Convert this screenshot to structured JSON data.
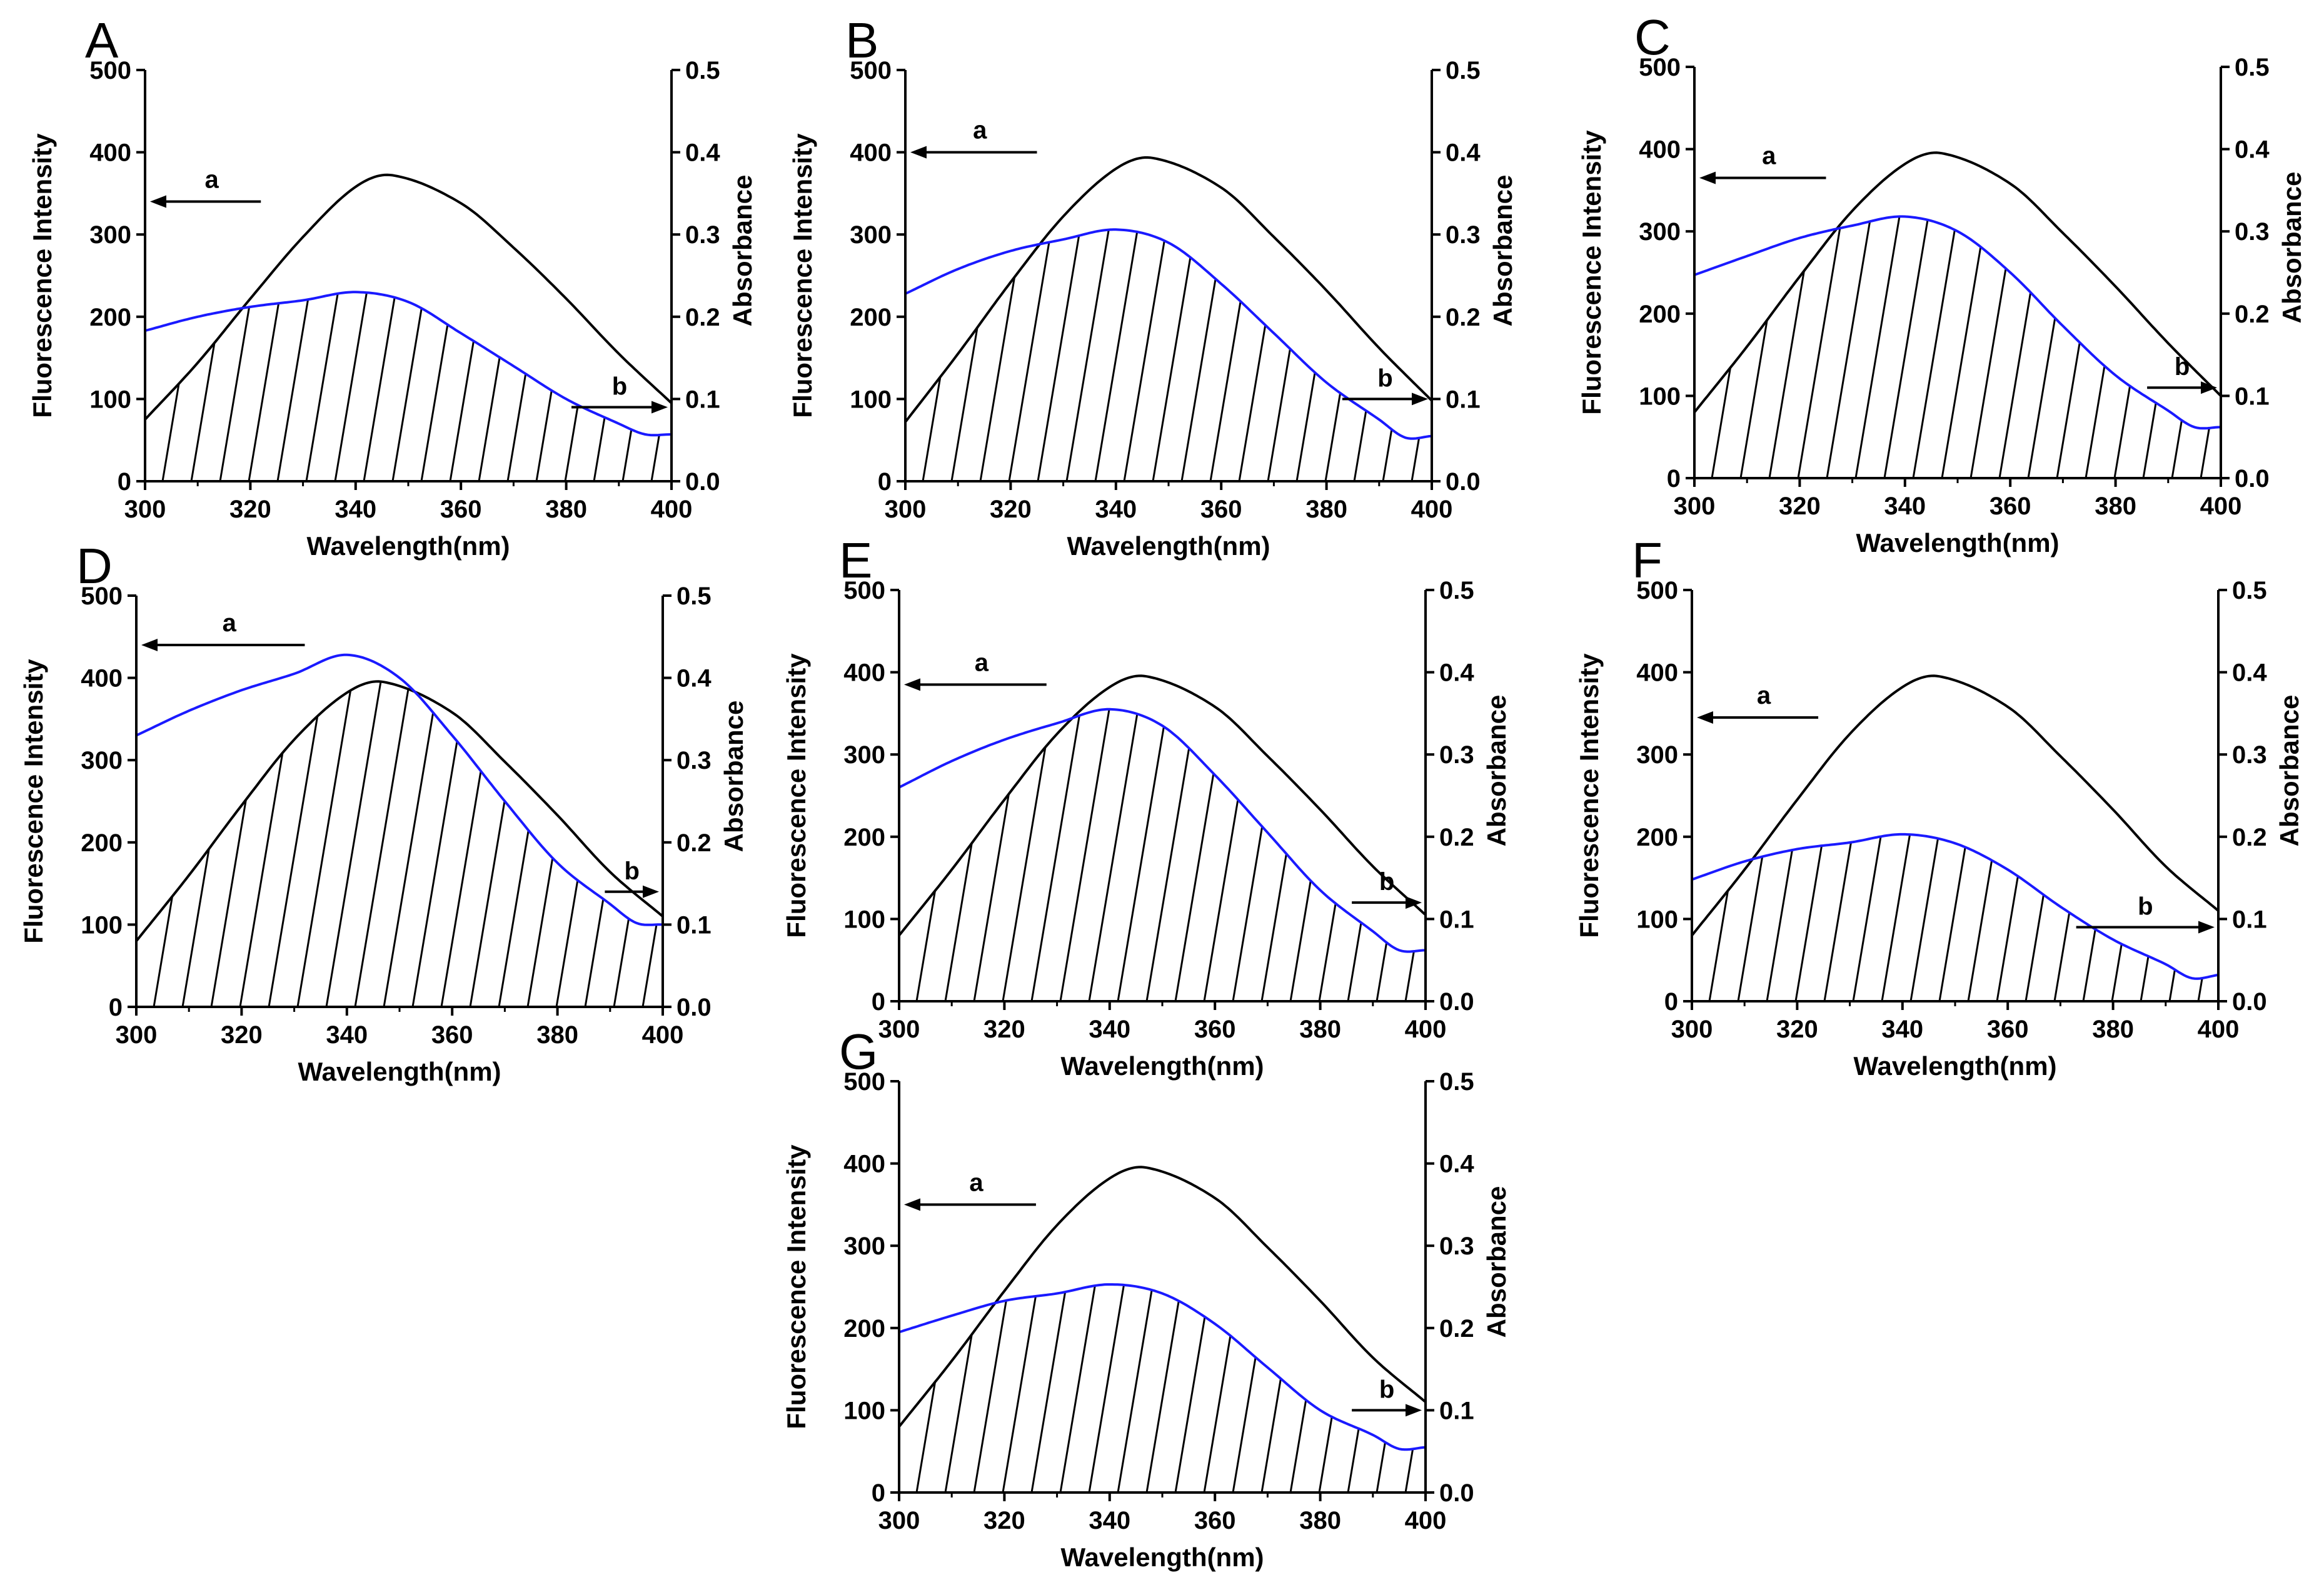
{
  "figure": {
    "colors": {
      "fluorescence": "#1a1aff",
      "absorbance": "#000000",
      "axis": "#000000",
      "hatch": "#000000"
    }
  },
  "chart_data": [
    {
      "panel": "A",
      "type": "line",
      "xlabel": "Wavelength(nm)",
      "ylabel_left": "Fluorescence Intensity",
      "ylabel_right": "Absorbance",
      "xlim": [
        300,
        400
      ],
      "ylim_left": [
        0,
        500
      ],
      "ylim_right": [
        0.0,
        0.5
      ],
      "x_ticks": [
        300,
        320,
        340,
        360,
        380,
        400
      ],
      "y_left_ticks": [
        0,
        100,
        200,
        300,
        400,
        500
      ],
      "y_right_ticks": [
        0.0,
        0.1,
        0.2,
        0.3,
        0.4,
        0.5
      ],
      "series": [
        {
          "name": "a",
          "axis": "left",
          "note": "fluorescence emission",
          "x": [
            300,
            310,
            320,
            330,
            340,
            350,
            360,
            370,
            380,
            390,
            395,
            400
          ],
          "values": [
            183,
            200,
            212,
            220,
            230,
            218,
            180,
            140,
            100,
            70,
            57,
            57
          ]
        },
        {
          "name": "b",
          "axis": "right",
          "note": "absorbance",
          "x": [
            300,
            310,
            320,
            330,
            340,
            347,
            360,
            370,
            380,
            390,
            400
          ],
          "values": [
            0.075,
            0.144,
            0.222,
            0.297,
            0.358,
            0.372,
            0.338,
            0.284,
            0.222,
            0.155,
            0.095
          ]
        }
      ]
    },
    {
      "panel": "B",
      "type": "line",
      "xlabel": "Wavelength(nm)",
      "ylabel_left": "Fluorescence Intensity",
      "ylabel_right": "Absorbance",
      "xlim": [
        300,
        400
      ],
      "ylim_left": [
        0,
        500
      ],
      "ylim_right": [
        0.0,
        0.5
      ],
      "x_ticks": [
        300,
        320,
        340,
        360,
        380,
        400
      ],
      "y_left_ticks": [
        0,
        100,
        200,
        300,
        400,
        500
      ],
      "y_right_ticks": [
        0.0,
        0.1,
        0.2,
        0.3,
        0.4,
        0.5
      ],
      "series": [
        {
          "name": "a",
          "axis": "left",
          "note": "fluorescence emission",
          "x": [
            300,
            310,
            320,
            330,
            340,
            350,
            360,
            370,
            380,
            390,
            395,
            400
          ],
          "values": [
            228,
            258,
            280,
            294,
            306,
            290,
            240,
            180,
            120,
            75,
            53,
            55
          ]
        },
        {
          "name": "b",
          "axis": "right",
          "note": "absorbance",
          "x": [
            300,
            310,
            320,
            330,
            340,
            347,
            360,
            370,
            380,
            390,
            400
          ],
          "values": [
            0.072,
            0.155,
            0.242,
            0.322,
            0.38,
            0.393,
            0.357,
            0.297,
            0.232,
            0.162,
            0.098
          ]
        }
      ]
    },
    {
      "panel": "C",
      "type": "line",
      "xlabel": "Wavelength(nm)",
      "ylabel_left": "Fluorescence Intensity",
      "ylabel_right": "Absorbance",
      "xlim": [
        300,
        400
      ],
      "ylim_left": [
        0,
        500
      ],
      "ylim_right": [
        0.0,
        0.5
      ],
      "x_ticks": [
        300,
        320,
        340,
        360,
        380,
        400
      ],
      "y_left_ticks": [
        0,
        100,
        200,
        300,
        400,
        500
      ],
      "y_right_ticks": [
        0.0,
        0.1,
        0.2,
        0.3,
        0.4,
        0.5
      ],
      "series": [
        {
          "name": "a",
          "axis": "left",
          "note": "fluorescence emission",
          "x": [
            300,
            310,
            320,
            330,
            340,
            350,
            360,
            370,
            380,
            390,
            395,
            400
          ],
          "values": [
            247,
            270,
            292,
            307,
            318,
            300,
            250,
            185,
            125,
            82,
            62,
            62
          ]
        },
        {
          "name": "b",
          "axis": "right",
          "note": "absorbance",
          "x": [
            300,
            310,
            320,
            330,
            340,
            347,
            360,
            370,
            380,
            390,
            400
          ],
          "values": [
            0.08,
            0.16,
            0.245,
            0.325,
            0.382,
            0.395,
            0.358,
            0.298,
            0.233,
            0.164,
            0.1
          ]
        }
      ]
    },
    {
      "panel": "D",
      "type": "line",
      "xlabel": "Wavelength(nm)",
      "ylabel_left": "Fluorescence Intensity",
      "ylabel_right": "Absorbance",
      "xlim": [
        300,
        400
      ],
      "ylim_left": [
        0,
        500
      ],
      "ylim_right": [
        0.0,
        0.5
      ],
      "x_ticks": [
        300,
        320,
        340,
        360,
        380,
        400
      ],
      "y_left_ticks": [
        0,
        100,
        200,
        300,
        400,
        500
      ],
      "y_right_ticks": [
        0.0,
        0.1,
        0.2,
        0.3,
        0.4,
        0.5
      ],
      "series": [
        {
          "name": "a",
          "axis": "left",
          "note": "fluorescence emission",
          "x": [
            300,
            310,
            320,
            330,
            340,
            350,
            360,
            370,
            380,
            390,
            395,
            400
          ],
          "values": [
            330,
            360,
            385,
            405,
            428,
            400,
            330,
            250,
            175,
            125,
            102,
            100
          ]
        },
        {
          "name": "b",
          "axis": "right",
          "note": "absorbance",
          "x": [
            300,
            310,
            320,
            330,
            340,
            347,
            360,
            370,
            380,
            390,
            400
          ],
          "values": [
            0.08,
            0.16,
            0.245,
            0.325,
            0.382,
            0.395,
            0.358,
            0.298,
            0.233,
            0.164,
            0.11
          ]
        }
      ]
    },
    {
      "panel": "E",
      "type": "line",
      "xlabel": "Wavelength(nm)",
      "ylabel_left": "Fluorescence Intensity",
      "ylabel_right": "Absorbance",
      "xlim": [
        300,
        400
      ],
      "ylim_left": [
        0,
        500
      ],
      "ylim_right": [
        0.0,
        0.5
      ],
      "x_ticks": [
        300,
        320,
        340,
        360,
        380,
        400
      ],
      "y_left_ticks": [
        0,
        100,
        200,
        300,
        400,
        500
      ],
      "y_right_ticks": [
        0.0,
        0.1,
        0.2,
        0.3,
        0.4,
        0.5
      ],
      "series": [
        {
          "name": "a",
          "axis": "left",
          "note": "fluorescence emission",
          "x": [
            300,
            310,
            320,
            330,
            340,
            350,
            360,
            370,
            380,
            390,
            395,
            400
          ],
          "values": [
            260,
            292,
            318,
            338,
            355,
            335,
            275,
            205,
            135,
            85,
            62,
            62
          ]
        },
        {
          "name": "b",
          "axis": "right",
          "note": "absorbance",
          "x": [
            300,
            310,
            320,
            330,
            340,
            347,
            360,
            370,
            380,
            390,
            400
          ],
          "values": [
            0.08,
            0.16,
            0.245,
            0.325,
            0.382,
            0.395,
            0.358,
            0.298,
            0.233,
            0.164,
            0.105
          ]
        }
      ]
    },
    {
      "panel": "F",
      "type": "line",
      "xlabel": "Wavelength(nm)",
      "ylabel_left": "Fluorescence Intensity",
      "ylabel_right": "Absorbance",
      "xlim": [
        300,
        400
      ],
      "ylim_left": [
        0,
        500
      ],
      "ylim_right": [
        0.0,
        0.5
      ],
      "x_ticks": [
        300,
        320,
        340,
        360,
        380,
        400
      ],
      "y_left_ticks": [
        0,
        100,
        200,
        300,
        400,
        500
      ],
      "y_right_ticks": [
        0.0,
        0.1,
        0.2,
        0.3,
        0.4,
        0.5
      ],
      "series": [
        {
          "name": "a",
          "axis": "left",
          "note": "fluorescence emission",
          "x": [
            300,
            310,
            320,
            330,
            340,
            350,
            360,
            370,
            380,
            390,
            395,
            400
          ],
          "values": [
            148,
            170,
            185,
            193,
            203,
            192,
            160,
            115,
            75,
            45,
            28,
            32
          ]
        },
        {
          "name": "b",
          "axis": "right",
          "note": "absorbance",
          "x": [
            300,
            310,
            320,
            330,
            340,
            347,
            360,
            370,
            380,
            390,
            400
          ],
          "values": [
            0.08,
            0.16,
            0.245,
            0.325,
            0.382,
            0.395,
            0.358,
            0.298,
            0.233,
            0.164,
            0.11
          ]
        }
      ]
    },
    {
      "panel": "G",
      "type": "line",
      "xlabel": "Wavelength(nm)",
      "ylabel_left": "Fluorescence Intensity",
      "ylabel_right": "Absorbance",
      "xlim": [
        300,
        400
      ],
      "ylim_left": [
        0,
        500
      ],
      "ylim_right": [
        0.0,
        0.5
      ],
      "x_ticks": [
        300,
        320,
        340,
        360,
        380,
        400
      ],
      "y_left_ticks": [
        0,
        100,
        200,
        300,
        400,
        500
      ],
      "y_right_ticks": [
        0.0,
        0.1,
        0.2,
        0.3,
        0.4,
        0.5
      ],
      "series": [
        {
          "name": "a",
          "axis": "left",
          "note": "fluorescence emission",
          "x": [
            300,
            310,
            320,
            330,
            340,
            350,
            360,
            370,
            380,
            390,
            395,
            400
          ],
          "values": [
            195,
            215,
            233,
            242,
            253,
            242,
            205,
            152,
            100,
            70,
            53,
            55
          ]
        },
        {
          "name": "b",
          "axis": "right",
          "note": "absorbance",
          "x": [
            300,
            310,
            320,
            330,
            340,
            347,
            360,
            370,
            380,
            390,
            400
          ],
          "values": [
            0.08,
            0.16,
            0.245,
            0.325,
            0.382,
            0.395,
            0.358,
            0.298,
            0.233,
            0.164,
            0.11
          ]
        }
      ]
    }
  ]
}
